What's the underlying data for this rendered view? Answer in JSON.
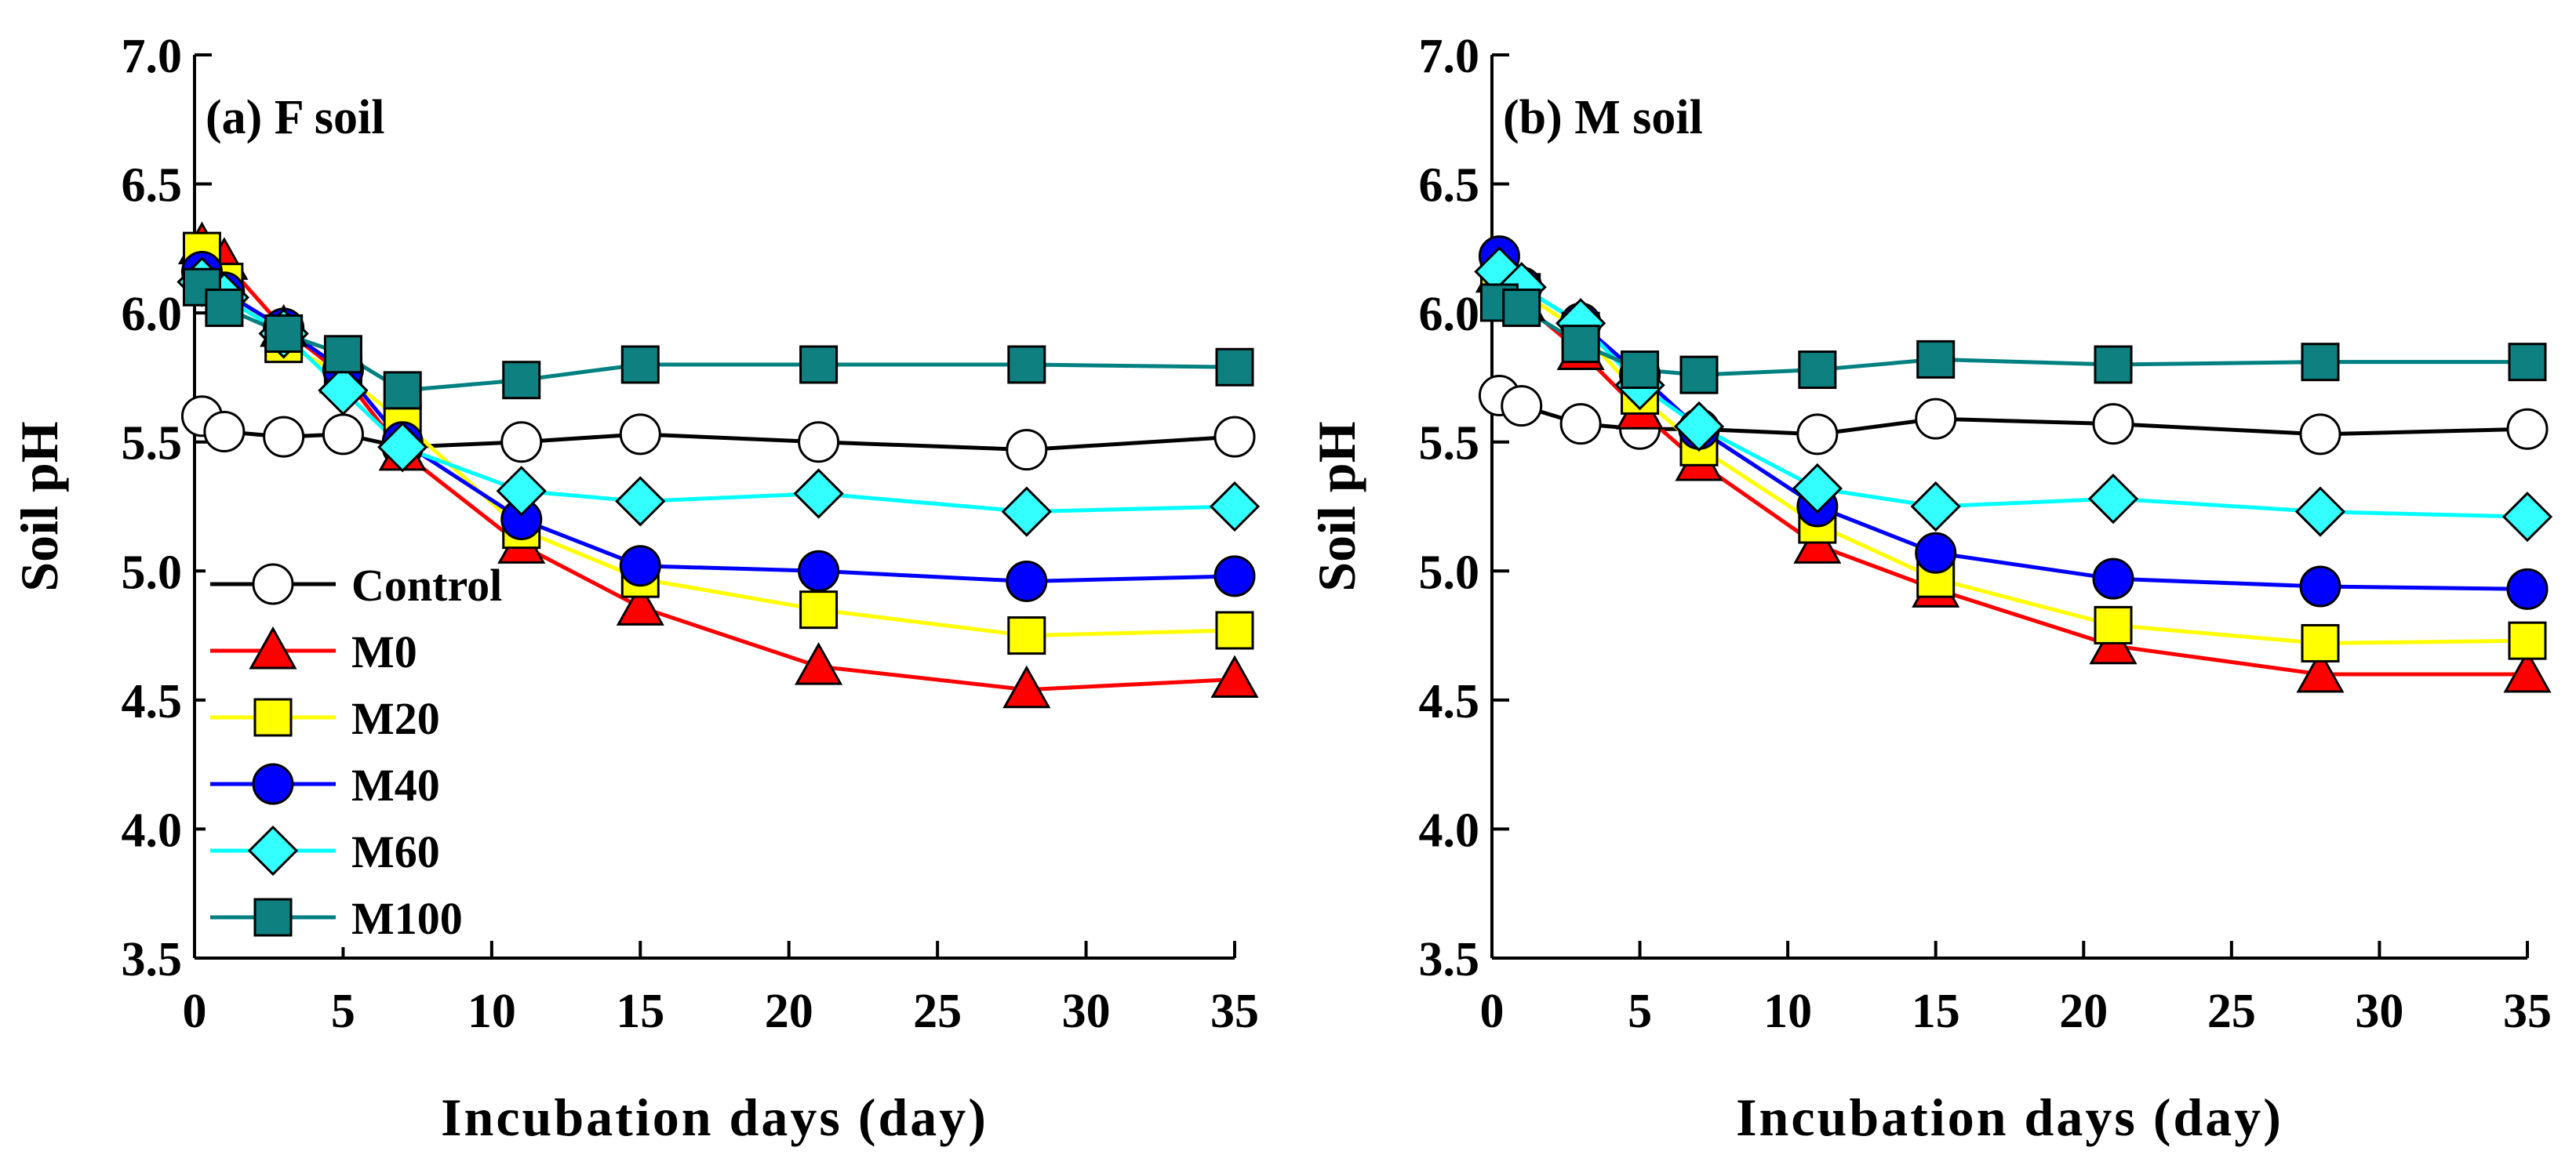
{
  "colors": {
    "Control": {
      "line": "#000000",
      "fill": "#ffffff"
    },
    "M0": {
      "line": "#ff0000",
      "fill": "#ff0000"
    },
    "M20": {
      "line": "#ffff00",
      "fill": "#ffff00"
    },
    "M40": {
      "line": "#0000ff",
      "fill": "#0000ff"
    },
    "M60": {
      "line": "#00ffff",
      "fill": "#33ffff"
    },
    "M100": {
      "line": "#008080",
      "fill": "#0f8080"
    }
  },
  "chart_data": [
    {
      "type": "line",
      "title": "(a) F soil",
      "xlabel": "Incubation days (day)",
      "ylabel": "Soil pH",
      "xlim": [
        0,
        35
      ],
      "ylim": [
        3.5,
        7.0
      ],
      "x_ticks": [
        "0",
        "5",
        "10",
        "15",
        "20",
        "25",
        "30",
        "35"
      ],
      "y_ticks": [
        "3.5",
        "4.0",
        "4.5",
        "5.0",
        "5.5",
        "6.0",
        "6.5",
        "7.0"
      ],
      "x": [
        0.25,
        1,
        3,
        5,
        7,
        11,
        15,
        21,
        28,
        35
      ],
      "series": [
        {
          "name": "Control",
          "marker": "circle",
          "values": [
            5.6,
            5.54,
            5.52,
            5.53,
            5.48,
            5.5,
            5.53,
            5.5,
            5.47,
            5.52
          ]
        },
        {
          "name": "M0",
          "marker": "triangle",
          "values": [
            6.26,
            6.2,
            5.94,
            5.76,
            5.46,
            5.1,
            4.86,
            4.63,
            4.54,
            4.58
          ]
        },
        {
          "name": "M20",
          "marker": "square",
          "values": [
            6.24,
            6.12,
            5.88,
            5.76,
            5.58,
            5.16,
            4.97,
            4.85,
            4.75,
            4.77
          ]
        },
        {
          "name": "M40",
          "marker": "circle",
          "values": [
            6.16,
            6.08,
            5.94,
            5.78,
            5.5,
            5.2,
            5.02,
            5.0,
            4.96,
            4.98
          ]
        },
        {
          "name": "M60",
          "marker": "diamond",
          "values": [
            6.12,
            6.06,
            5.92,
            5.7,
            5.48,
            5.31,
            5.27,
            5.3,
            5.23,
            5.25
          ]
        },
        {
          "name": "M100",
          "marker": "square",
          "values": [
            6.1,
            6.02,
            5.92,
            5.84,
            5.7,
            5.74,
            5.8,
            5.8,
            5.8,
            5.79
          ]
        }
      ]
    },
    {
      "type": "line",
      "title": "(b) M soil",
      "xlabel": "Incubation days (day)",
      "ylabel": "Soil pH",
      "xlim": [
        0,
        35
      ],
      "ylim": [
        3.5,
        7.0
      ],
      "x_ticks": [
        "0",
        "5",
        "10",
        "15",
        "20",
        "25",
        "30",
        "35"
      ],
      "y_ticks": [
        "3.5",
        "4.0",
        "4.5",
        "5.0",
        "5.5",
        "6.0",
        "6.5",
        "7.0"
      ],
      "x": [
        0.25,
        1,
        3,
        5,
        7,
        11,
        15,
        21,
        28,
        35
      ],
      "series": [
        {
          "name": "Control",
          "marker": "circle",
          "values": [
            5.68,
            5.64,
            5.57,
            5.55,
            5.55,
            5.53,
            5.59,
            5.57,
            5.53,
            5.55
          ]
        },
        {
          "name": "M0",
          "marker": "triangle",
          "values": [
            6.15,
            6.04,
            5.85,
            5.62,
            5.42,
            5.1,
            4.93,
            4.71,
            4.6,
            4.6
          ]
        },
        {
          "name": "M20",
          "marker": "square",
          "values": [
            6.18,
            6.08,
            5.93,
            5.68,
            5.48,
            5.18,
            4.97,
            4.79,
            4.72,
            4.73
          ]
        },
        {
          "name": "M40",
          "marker": "circle",
          "values": [
            6.22,
            6.1,
            5.96,
            5.76,
            5.55,
            5.25,
            5.07,
            4.97,
            4.94,
            4.93
          ]
        },
        {
          "name": "M60",
          "marker": "diamond",
          "values": [
            6.16,
            6.1,
            5.96,
            5.72,
            5.56,
            5.32,
            5.25,
            5.28,
            5.23,
            5.21
          ]
        },
        {
          "name": "M100",
          "marker": "square",
          "values": [
            6.04,
            6.02,
            5.88,
            5.78,
            5.76,
            5.78,
            5.82,
            5.8,
            5.81,
            5.81
          ]
        }
      ]
    }
  ]
}
